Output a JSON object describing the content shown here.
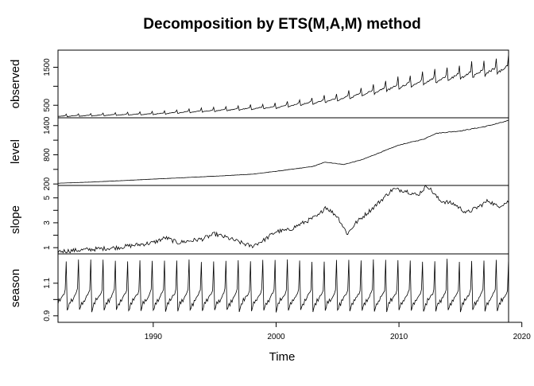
{
  "chart_data": {
    "type": "line",
    "title": "Decomposition by ETS(M,A,M) method",
    "xlabel": "Time",
    "x_range": [
      1982.25,
      2018.92
    ],
    "x_ticks": [
      1990,
      2000,
      2010,
      2020
    ],
    "x_tick_labels": [
      "1990",
      "2000",
      "2010",
      "2020"
    ],
    "frequency": 12,
    "panels": [
      {
        "name": "observed",
        "ylabel": "observed",
        "ylim": [
          170,
          1950
        ],
        "y_ticks": [
          500,
          1500
        ],
        "y_tick_labels": [
          "500",
          "1500"
        ],
        "trend_knots": [
          [
            1982.25,
            210
          ],
          [
            1990,
            270
          ],
          [
            1995,
            360
          ],
          [
            2000,
            450
          ],
          [
            2005,
            650
          ],
          [
            2010,
            1000
          ],
          [
            2015,
            1270
          ],
          [
            2018.92,
            1470
          ]
        ]
      },
      {
        "name": "level",
        "ylabel": "level",
        "ylim": [
          170,
          1560
        ],
        "y_ticks": [
          200,
          800,
          1400
        ],
        "y_tick_labels": [
          "200",
          "800",
          "1400"
        ],
        "knots": [
          [
            1982.25,
            215
          ],
          [
            1985,
            240
          ],
          [
            1990,
            300
          ],
          [
            1995,
            360
          ],
          [
            1998,
            400
          ],
          [
            2000,
            460
          ],
          [
            2003,
            560
          ],
          [
            2004,
            650
          ],
          [
            2005.5,
            600
          ],
          [
            2007,
            700
          ],
          [
            2009,
            900
          ],
          [
            2010,
            1000
          ],
          [
            2012,
            1120
          ],
          [
            2013,
            1240
          ],
          [
            2015,
            1290
          ],
          [
            2017,
            1380
          ],
          [
            2018.92,
            1500
          ]
        ]
      },
      {
        "name": "slope",
        "ylabel": "slope",
        "ylim": [
          0.5,
          6.0
        ],
        "y_ticks": [
          1,
          3,
          5
        ],
        "y_tick_labels": [
          "1",
          "3",
          "5"
        ],
        "knots": [
          [
            1982.25,
            0.7
          ],
          [
            1984,
            0.8
          ],
          [
            1987,
            1.0
          ],
          [
            1990,
            1.4
          ],
          [
            1991,
            1.8
          ],
          [
            1992,
            1.4
          ],
          [
            1994,
            1.7
          ],
          [
            1995,
            2.1
          ],
          [
            1996,
            1.8
          ],
          [
            1998,
            1.1
          ],
          [
            1999,
            1.6
          ],
          [
            2000,
            2.3
          ],
          [
            2001,
            2.4
          ],
          [
            2002,
            2.9
          ],
          [
            2003.5,
            3.6
          ],
          [
            2004,
            4.3
          ],
          [
            2005,
            3.5
          ],
          [
            2005.8,
            2.1
          ],
          [
            2006.5,
            3.0
          ],
          [
            2008,
            4.3
          ],
          [
            2009.5,
            5.7
          ],
          [
            2010.5,
            5.6
          ],
          [
            2011.5,
            5.2
          ],
          [
            2012.3,
            6.0
          ],
          [
            2013.3,
            4.8
          ],
          [
            2014.5,
            4.5
          ],
          [
            2015.5,
            3.8
          ],
          [
            2016.5,
            4.3
          ],
          [
            2017.3,
            4.8
          ],
          [
            2018,
            4.3
          ],
          [
            2018.92,
            4.7
          ]
        ]
      },
      {
        "name": "season",
        "ylabel": "season",
        "ylim": [
          0.86,
          1.28
        ],
        "y_ticks": [
          0.9,
          1.1
        ],
        "y_tick_labels": [
          "0.9",
          "1.1"
        ],
        "monthly_pattern": [
          0.93,
          0.95,
          0.98,
          0.97,
          1.0,
          0.99,
          1.01,
          1.02,
          1.03,
          1.04,
          1.06,
          1.24
        ]
      }
    ]
  }
}
